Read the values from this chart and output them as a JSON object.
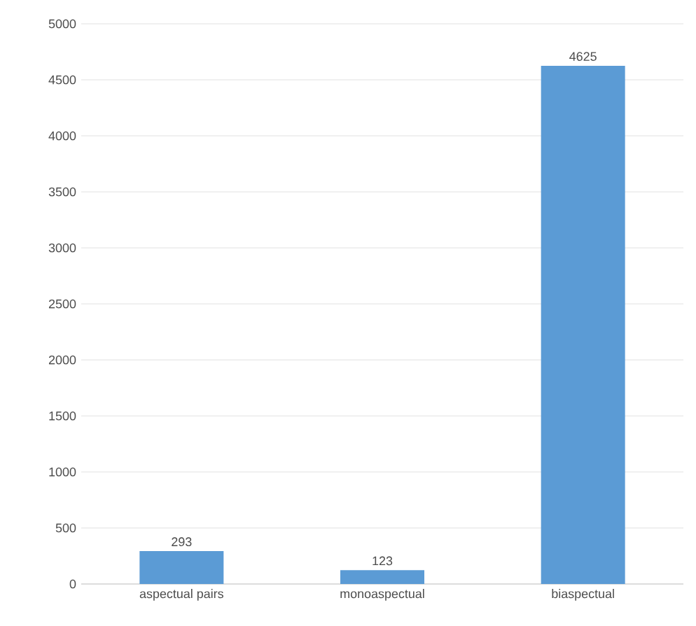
{
  "chart_data": {
    "type": "bar",
    "categories": [
      "aspectual pairs",
      "monoaspectual",
      "biaspectual"
    ],
    "values": [
      293,
      123,
      4625
    ],
    "color": "#5b9bd5",
    "ylim": [
      0,
      5000
    ],
    "yticks": [
      0,
      500,
      1000,
      1500,
      2000,
      2500,
      3000,
      3500,
      4000,
      4500,
      5000
    ],
    "grid": "y",
    "data_labels": true
  }
}
